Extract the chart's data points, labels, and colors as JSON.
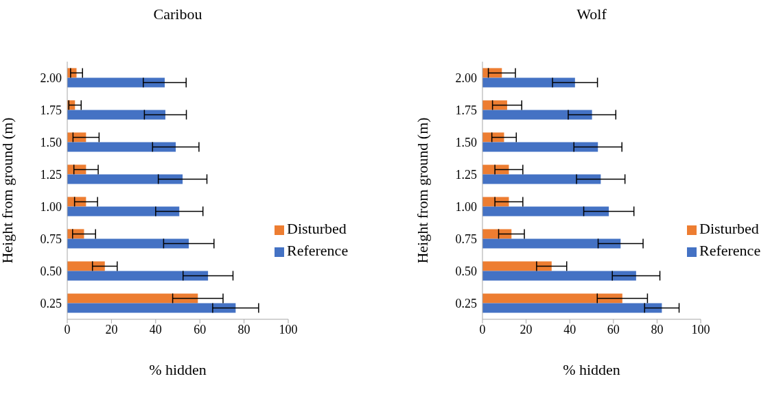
{
  "chart_data": [
    {
      "type": "bar",
      "orientation": "horizontal",
      "title": "Caribou",
      "xlabel": "% hidden",
      "ylabel": "Height from ground (m)",
      "categories": [
        "2.00",
        "1.75",
        "1.50",
        "1.25",
        "1.00",
        "0.75",
        "0.50",
        "0.25"
      ],
      "xlim": [
        0,
        100
      ],
      "xticks": [
        0,
        20,
        40,
        60,
        80,
        100
      ],
      "legend": "right",
      "grid": false,
      "series": [
        {
          "name": "Disturbed",
          "color": "#ed7d31",
          "values": [
            4.2,
            3.5,
            8.5,
            8.5,
            8.5,
            7.6,
            17.0,
            59.1
          ],
          "errors": [
            2.7,
            2.8,
            5.9,
            5.5,
            5.2,
            5.2,
            5.6,
            11.4
          ]
        },
        {
          "name": "Reference",
          "color": "#4472c4",
          "values": [
            44.1,
            44.4,
            49.1,
            52.2,
            50.7,
            55.0,
            63.7,
            76.2
          ],
          "errors": [
            9.7,
            9.5,
            10.5,
            11.0,
            10.7,
            11.4,
            11.3,
            10.4
          ]
        }
      ]
    },
    {
      "type": "bar",
      "orientation": "horizontal",
      "title": "Wolf",
      "xlabel": "% hidden",
      "ylabel": "Height from ground (m)",
      "categories": [
        "2.00",
        "1.75",
        "1.50",
        "1.25",
        "1.00",
        "0.75",
        "0.50",
        "0.25"
      ],
      "xlim": [
        0,
        100
      ],
      "xticks": [
        0,
        20,
        40,
        60,
        80,
        100
      ],
      "legend": "right",
      "grid": false,
      "series": [
        {
          "name": "Disturbed",
          "color": "#ed7d31",
          "values": [
            8.9,
            11.3,
            9.9,
            12.1,
            12.1,
            13.3,
            31.7,
            64.1
          ],
          "errors": [
            6.2,
            6.7,
            5.6,
            6.4,
            6.4,
            5.9,
            6.9,
            11.5
          ]
        },
        {
          "name": "Reference",
          "color": "#4472c4",
          "values": [
            42.4,
            50.2,
            52.9,
            54.2,
            57.9,
            63.3,
            70.4,
            82.2
          ],
          "errors": [
            10.3,
            10.9,
            11.0,
            11.1,
            11.5,
            10.3,
            10.9,
            7.9
          ]
        }
      ]
    }
  ]
}
